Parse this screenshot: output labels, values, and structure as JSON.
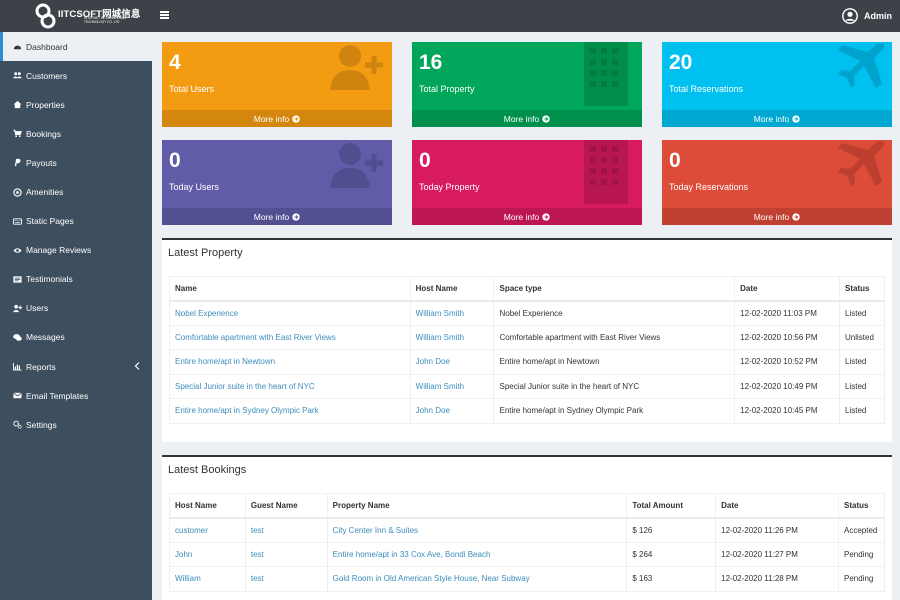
{
  "header": {
    "brand": "IITCSOFT网城信息",
    "brand_sub": "Internet International Technology Co.,Ltd",
    "user_name": "Admin"
  },
  "sidebar": {
    "items": [
      {
        "label": "Dashboard",
        "icon": "dashboard-icon",
        "active": true
      },
      {
        "label": "Customers",
        "icon": "users-icon"
      },
      {
        "label": "Properties",
        "icon": "home-icon"
      },
      {
        "label": "Bookings",
        "icon": "cart-icon"
      },
      {
        "label": "Payouts",
        "icon": "paypal-icon"
      },
      {
        "label": "Amenities",
        "icon": "bullseye-icon"
      },
      {
        "label": "Static Pages",
        "icon": "keyboard-icon"
      },
      {
        "label": "Manage Reviews",
        "icon": "eye-icon"
      },
      {
        "label": "Testimonials",
        "icon": "newspaper-icon"
      },
      {
        "label": "Users",
        "icon": "user-plus-icon"
      },
      {
        "label": "Messages",
        "icon": "comments-icon"
      },
      {
        "label": "Reports",
        "icon": "bar-chart-icon",
        "has_caret": true
      },
      {
        "label": "Email Templates",
        "icon": "envelope-icon"
      },
      {
        "label": "Settings",
        "icon": "cogs-icon"
      }
    ]
  },
  "stats": [
    {
      "value": "4",
      "label": "Total Users",
      "more": "More info",
      "color": "#f39c12",
      "icon": "user-plus-icon"
    },
    {
      "value": "16",
      "label": "Total Property",
      "more": "More info",
      "color": "#00a65a",
      "icon": "building-icon"
    },
    {
      "value": "20",
      "label": "Total Reservations",
      "more": "More info",
      "color": "#00c0ef",
      "icon": "plane-icon"
    },
    {
      "value": "0",
      "label": "Today Users",
      "more": "More info",
      "color": "#605ca8",
      "icon": "user-plus-icon"
    },
    {
      "value": "0",
      "label": "Today Property",
      "more": "More info",
      "color": "#d81b60",
      "icon": "building-icon"
    },
    {
      "value": "0",
      "label": "Today Reservations",
      "more": "More info",
      "color": "#dd4b39",
      "icon": "plane-icon"
    }
  ],
  "latest_property": {
    "title": "Latest Property",
    "headers": [
      "Name",
      "Host Name",
      "Space type",
      "Date",
      "Status"
    ],
    "rows": [
      [
        "Nobel Experience",
        "William Smith",
        "Nobel Experience",
        "12-02-2020 11:03 PM",
        "Listed"
      ],
      [
        "Comfortable apartment with East River Views",
        "William Smith",
        "Comfortable apartment with East River Views",
        "12-02-2020 10:56 PM",
        "Unlisted"
      ],
      [
        "Entire home/apt in Newtown",
        "John Doe",
        "Entire home/apt in Newtown",
        "12-02-2020 10:52 PM",
        "Listed"
      ],
      [
        "Special Junior suite in the heart of NYC",
        "William Smith",
        "Special Junior suite in the heart of NYC",
        "12-02-2020 10:49 PM",
        "Listed"
      ],
      [
        "Entire home/apt in Sydney Olympic Park",
        "John Doe",
        "Entire home/apt in Sydney Olympic Park",
        "12-02-2020 10:45 PM",
        "Listed"
      ]
    ]
  },
  "latest_bookings": {
    "title": "Latest Bookings",
    "headers": [
      "Host Name",
      "Guest Name",
      "Property Name",
      "Total Amount",
      "Date",
      "Status"
    ],
    "rows": [
      [
        "customer",
        "test",
        "City Center Inn & Suites",
        "$ 126",
        "12-02-2020 11:26 PM",
        "Accepted"
      ],
      [
        "John",
        "test",
        "Entire home/apt in 33 Cox Ave, Bondi Beach",
        "$ 264",
        "12-02-2020 11:27 PM",
        "Pending"
      ],
      [
        "William",
        "test",
        "Gold Room in Old American Style House, Near Subway",
        "$ 163",
        "12-02-2020 11:28 PM",
        "Pending"
      ]
    ]
  }
}
